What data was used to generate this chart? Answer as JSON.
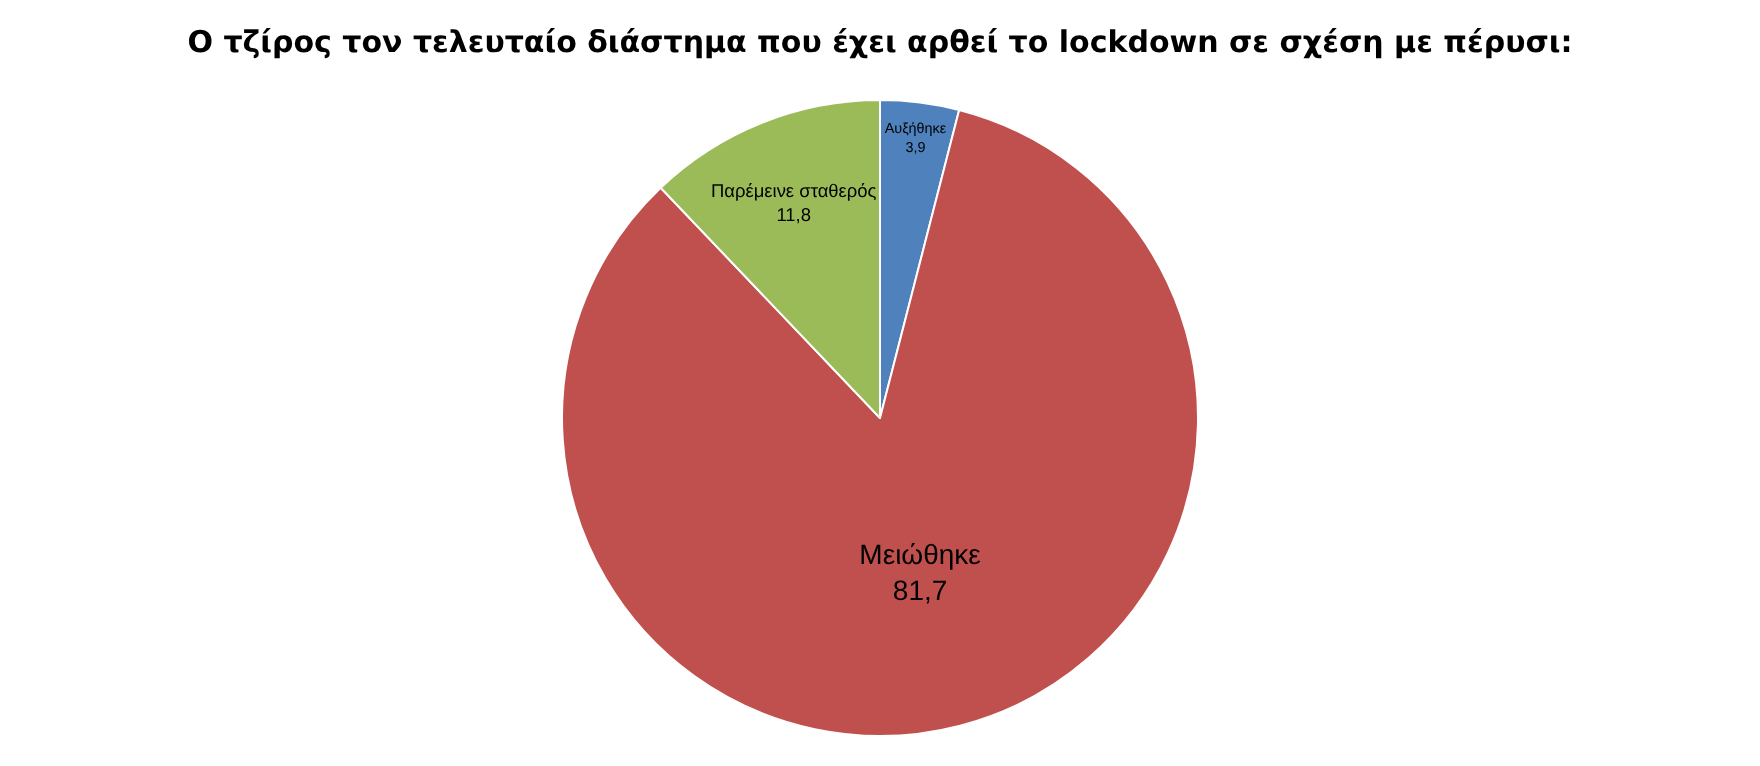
{
  "chart_data": {
    "type": "pie",
    "title": "Ο τζίρος τον τελευταίο διάστημα που έχει αρθεί το lockdown σε σχέση με πέρυσι:",
    "categories": [
      "Αυξήθηκε",
      "Μειώθηκε",
      "Παρέμεινε σταθερός"
    ],
    "values": [
      3.9,
      81.7,
      11.8
    ],
    "value_labels": [
      "3,9",
      "81,7",
      "11,8"
    ],
    "colors": [
      "#4f81bd",
      "#c0504d",
      "#9bbb59"
    ],
    "legend": false
  }
}
